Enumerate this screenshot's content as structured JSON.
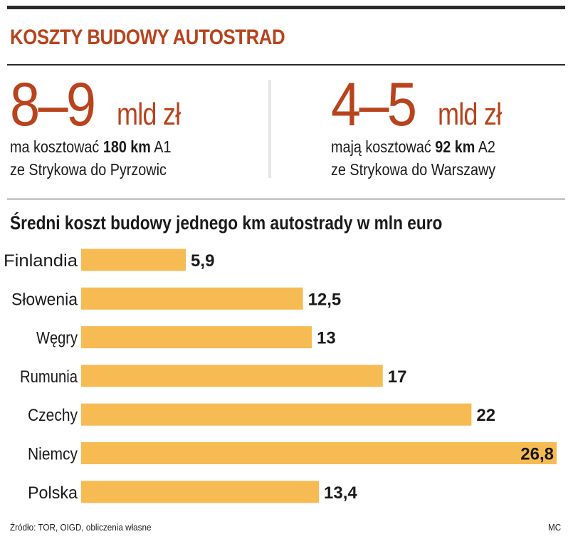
{
  "header": {
    "title": "KOSZTY BUDOWY AUTOSTRAD"
  },
  "stats": [
    {
      "big": "8–9",
      "unit": "mld zł",
      "line1_pre": "ma kosztować ",
      "line1_bold": "180 km",
      "line1_post": " A1",
      "line2": "ze Strykowa do Pyrzowic"
    },
    {
      "big": "4–5",
      "unit": "mld zł",
      "line1_pre": "mają kosztować ",
      "line1_bold": "92 km",
      "line1_post": " A2",
      "line2": "ze Strykowa do Warszawy"
    }
  ],
  "chart_data": {
    "type": "bar",
    "orientation": "horizontal",
    "title": "Średni koszt budowy jednego km autostrady w mln euro",
    "categories": [
      "Finlandia",
      "Słowenia",
      "Węgry",
      "Rumunia",
      "Czechy",
      "Niemcy",
      "Polska"
    ],
    "values": [
      5.9,
      12.5,
      13,
      17,
      22,
      26.8,
      13.4
    ],
    "value_labels": [
      "5,9",
      "12,5",
      "13",
      "17",
      "22",
      "26,8",
      "13,4"
    ],
    "xlim": [
      0,
      26.8
    ],
    "bar_color": "#f6bb52",
    "label_inside_for_max": true
  },
  "footer": {
    "source": "Źródło: TOR, OIGD, obliczenia własne",
    "credit": "MC"
  },
  "colors": {
    "accent": "#b8431c",
    "bar": "#f6bb52",
    "rule": "#2a2a2a"
  }
}
